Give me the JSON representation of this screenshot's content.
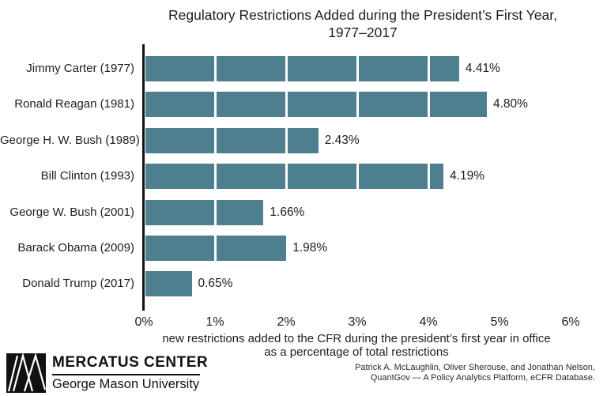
{
  "chart_data": {
    "type": "bar",
    "orientation": "horizontal",
    "title_line1": "Regulatory Restrictions Added during the President’s First Year,",
    "title_line2": "1977–2017",
    "categories": [
      "Jimmy Carter (1977)",
      "Ronald Reagan (1981)",
      "George H. W. Bush (1989)",
      "Bill Clinton (1993)",
      "George W. Bush (2001)",
      "Barack Obama (2009)",
      "Donald Trump (2017)"
    ],
    "values": [
      4.41,
      4.8,
      2.43,
      4.19,
      1.66,
      1.98,
      0.65
    ],
    "value_labels": [
      "4.41%",
      "4.80%",
      "2.43%",
      "4.19%",
      "1.66%",
      "1.98%",
      "0.65%"
    ],
    "x_ticks": [
      "0%",
      "1%",
      "2%",
      "3%",
      "4%",
      "5%",
      "6%"
    ],
    "xlim": [
      0,
      6
    ],
    "xlabel_line1": "new restrictions added to the CFR during the president’s first year in office",
    "xlabel_line2": "as a percentage of total restrictions",
    "bar_color": "#4d7f8e",
    "grid": "off",
    "legend": "none"
  },
  "credits": {
    "line1": "Patrick A. McLaughlin, Oliver Sherouse, and Jonathan Nelson,",
    "line2": "QuantGov — A Policy Analytics Platform, eCFR Database."
  },
  "logo": {
    "name": "MERCATUS CENTER",
    "subname": "George Mason University"
  }
}
